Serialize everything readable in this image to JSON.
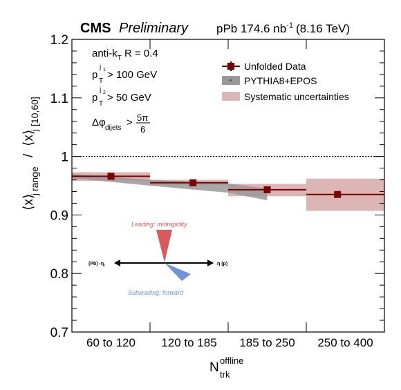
{
  "header": {
    "experiment": "CMS",
    "status": "Preliminary",
    "dataset_prefix": "pPb 174.6 nb",
    "dataset_exp": "-1",
    "energy": "(8.16 TeV)"
  },
  "cuts": {
    "jet_algo_prefix": "anti-k",
    "jet_algo_sub": "T",
    "jet_algo_suffix": " R = 0.4",
    "p": "p",
    "t": "T",
    "j1": "j",
    "j1_sub": "1",
    "j1_cut": "> 100 GeV",
    "j2": "j",
    "j2_sub": "2",
    "j2_cut": "> 50 GeV",
    "dphi": "Δφ",
    "dphi_sub": "dijets",
    "dphi_gt": ">",
    "frac_num": "5π",
    "frac_den": "6"
  },
  "legend_title_key": "",
  "annotations": {
    "leading": "Leading: midrapidity",
    "subleading": "Subleading: forward",
    "left_arrow": "(Pb) -η",
    "right_arrow": "η (p)",
    "left_arrow_sub": "l"
  },
  "axes": {
    "x_main": "N",
    "x_sup": "offline",
    "x_sub": "trk",
    "y_open1": "⟨x⟩",
    "y_sub1": "j",
    "y_range": "range",
    "y_div": "/",
    "y_open2": "⟨x⟩",
    "y_sub2": "j",
    "y_range2": "[10,60]"
  },
  "chart_data": {
    "type": "scatter",
    "categories": [
      "60 to 120",
      "120 to 185",
      "185 to 250",
      "250 to 400"
    ],
    "ylim": [
      0.7,
      1.2
    ],
    "yticks": [
      "0.7",
      "0.8",
      "0.9",
      "1",
      "1.1",
      "1.2"
    ],
    "ytick_values": [
      0.7,
      0.8,
      0.9,
      1.0,
      1.1,
      1.2
    ],
    "reference_line": 1.0,
    "legend_position": "top-right",
    "series": [
      {
        "name": "Unfolded Data",
        "color": "#7a0000",
        "values": [
          0.966,
          0.955,
          0.943,
          0.935
        ],
        "x_position": [
          0.5,
          0.55,
          0.5,
          0.4
        ],
        "syst_low": [
          0.958,
          0.951,
          0.932,
          0.907
        ],
        "syst_high": [
          0.973,
          0.96,
          0.953,
          0.962
        ]
      },
      {
        "name": "PYTHIA8+EPOS",
        "color": "#999999",
        "band": [
          {
            "x": 0.0,
            "lo": 0.963,
            "hi": 0.97
          },
          {
            "x": 1.0,
            "lo": 0.95,
            "hi": 0.96
          },
          {
            "x": 2.0,
            "lo": 0.938,
            "hi": 0.954
          },
          {
            "x": 2.5,
            "lo": 0.925,
            "hi": 0.945
          }
        ]
      },
      {
        "name": "Systematic uncertainties",
        "color": "#dcb5b5"
      }
    ]
  }
}
